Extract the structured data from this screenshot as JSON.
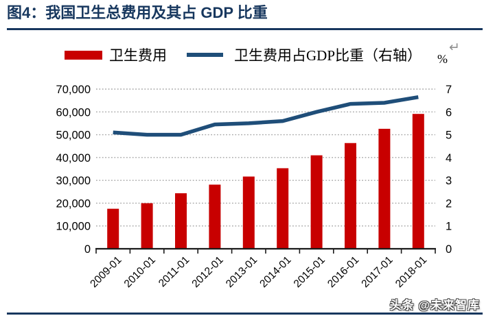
{
  "header": {
    "title": "图4：我国卫生总费用及其占 GDP 比重"
  },
  "legend": {
    "items": [
      {
        "label": "卫生费用",
        "marker": "bar-swatch",
        "color": "#C80000"
      },
      {
        "label": "卫生费用占GDP比重（右轴）",
        "marker": "line-swatch",
        "color": "#1F4E79"
      }
    ],
    "right_axis_unit": "%",
    "linebreak_glyph": "↵"
  },
  "watermark": {
    "text": "头条 @未来智库"
  },
  "colors": {
    "accent_navy": "#17375E",
    "bar_red": "#C80000",
    "line_blue": "#1F4E79",
    "grid_gray": "#A6A6A6",
    "axis_black": "#1A1A1A",
    "glyph_gray": "#8F8F8F"
  },
  "chart_data": {
    "type": "bar",
    "subtype": "bar+line-combo",
    "title": "我国卫生总费用及其占GDP比重",
    "categories": [
      "2009-01",
      "2010-01",
      "2011-01",
      "2012-01",
      "2013-01",
      "2014-01",
      "2015-01",
      "2016-01",
      "2017-01",
      "2018-01"
    ],
    "series": [
      {
        "name": "卫生费用",
        "type": "bar",
        "axis": "left",
        "color": "#C80000",
        "values": [
          17542,
          19980,
          24346,
          28119,
          31669,
          35312,
          40975,
          46345,
          52598,
          59122
        ]
      },
      {
        "name": "卫生费用占GDP比重（右轴）",
        "type": "line",
        "axis": "right",
        "color": "#1F4E79",
        "values": [
          5.1,
          5.0,
          5.0,
          5.45,
          5.5,
          5.6,
          6.0,
          6.35,
          6.4,
          6.65
        ]
      }
    ],
    "left_axis": {
      "min": 0,
      "max": 70000,
      "step": 10000,
      "tick_labels": [
        "0",
        "10,000",
        "20,000",
        "30,000",
        "40,000",
        "50,000",
        "60,000",
        "70,000"
      ]
    },
    "right_axis": {
      "min": 0,
      "max": 7,
      "step": 1,
      "unit": "%",
      "tick_labels": [
        "0",
        "1",
        "2",
        "3",
        "4",
        "5",
        "6",
        "7"
      ]
    },
    "grid": "horizontal-dotted",
    "legend_position": "top"
  }
}
